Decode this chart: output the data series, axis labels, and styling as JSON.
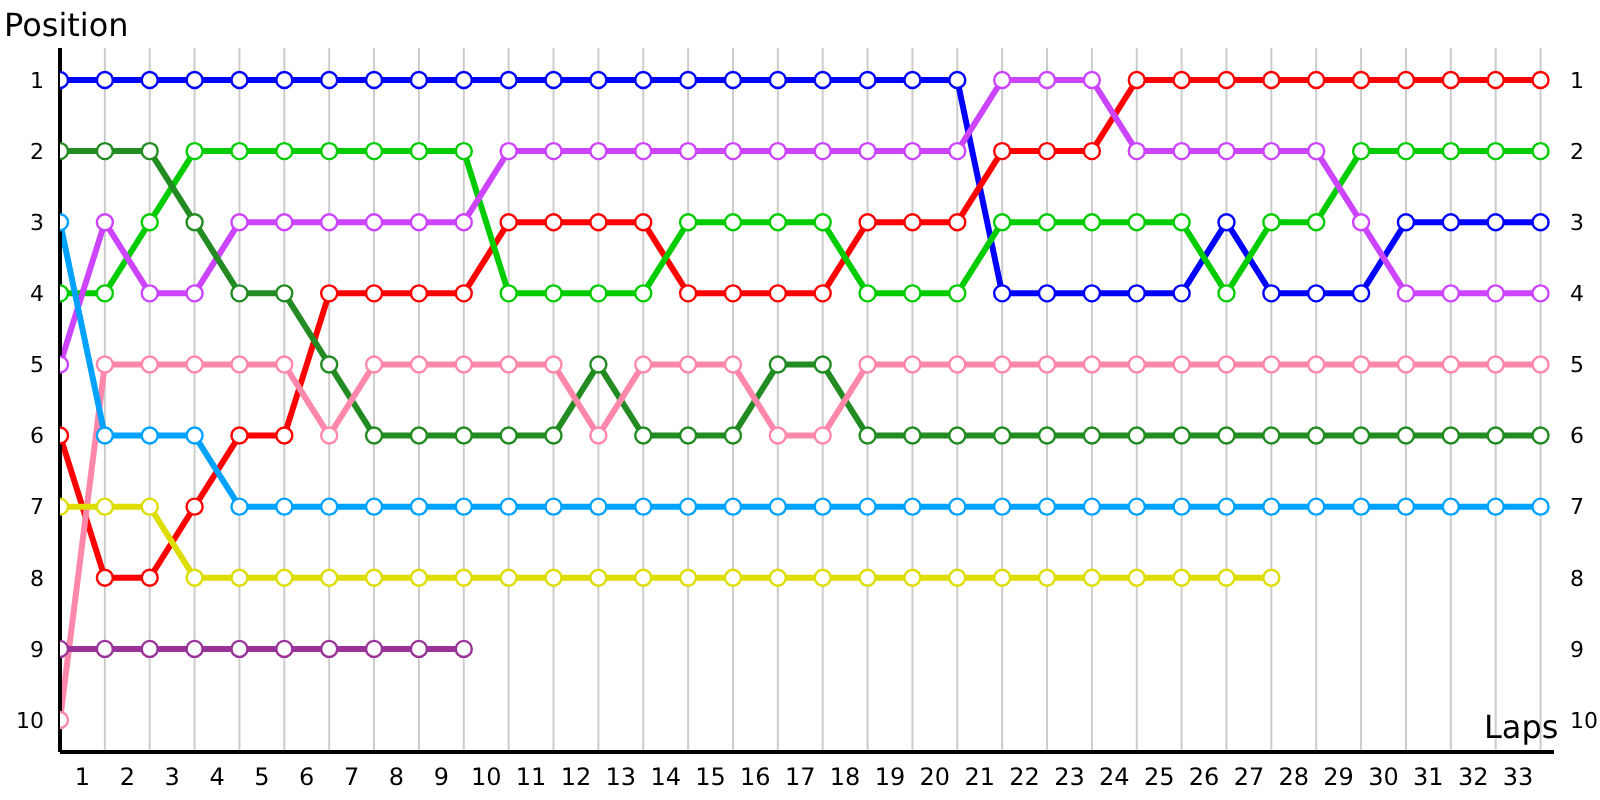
{
  "chart_data": {
    "type": "line",
    "xlabel": "Laps",
    "ylabel": "Position",
    "x": [
      0,
      1,
      2,
      3,
      4,
      5,
      6,
      7,
      8,
      9,
      10,
      11,
      12,
      13,
      14,
      15,
      16,
      17,
      18,
      19,
      20,
      21,
      22,
      23,
      24,
      25,
      26,
      27,
      28,
      29,
      30,
      31,
      32,
      33
    ],
    "xlim": [
      0,
      33.3
    ],
    "xticks": [
      {
        "value": 0,
        "label": null
      },
      {
        "value": 0.5,
        "label": "1"
      },
      {
        "value": 1,
        "label": null
      },
      {
        "value": 1.5,
        "label": "2"
      },
      {
        "value": 2,
        "label": null
      },
      {
        "value": 2.5,
        "label": "3"
      },
      {
        "value": 3,
        "label": null
      },
      {
        "value": 3.5,
        "label": "4"
      },
      {
        "value": 4,
        "label": null
      },
      {
        "value": 4.5,
        "label": "5"
      },
      {
        "value": 5,
        "label": null
      },
      {
        "value": 5.5,
        "label": "6"
      },
      {
        "value": 6,
        "label": null
      },
      {
        "value": 6.5,
        "label": "7"
      },
      {
        "value": 7,
        "label": null
      },
      {
        "value": 7.5,
        "label": "8"
      },
      {
        "value": 8,
        "label": null
      },
      {
        "value": 8.5,
        "label": "9"
      },
      {
        "value": 9,
        "label": null
      },
      {
        "value": 9.5,
        "label": "10"
      },
      {
        "value": 10,
        "label": null
      },
      {
        "value": 10.5,
        "label": "11"
      },
      {
        "value": 11,
        "label": null
      },
      {
        "value": 11.5,
        "label": "12"
      },
      {
        "value": 12,
        "label": null
      },
      {
        "value": 12.5,
        "label": "13"
      },
      {
        "value": 13,
        "label": null
      },
      {
        "value": 13.5,
        "label": "14"
      },
      {
        "value": 14,
        "label": null
      },
      {
        "value": 14.5,
        "label": "15"
      },
      {
        "value": 15,
        "label": null
      },
      {
        "value": 15.5,
        "label": "16"
      },
      {
        "value": 16,
        "label": null
      },
      {
        "value": 16.5,
        "label": "17"
      },
      {
        "value": 17,
        "label": null
      },
      {
        "value": 17.5,
        "label": "18"
      },
      {
        "value": 18,
        "label": null
      },
      {
        "value": 18.5,
        "label": "19"
      },
      {
        "value": 19,
        "label": null
      },
      {
        "value": 19.5,
        "label": "20"
      },
      {
        "value": 20,
        "label": null
      },
      {
        "value": 20.5,
        "label": "21"
      },
      {
        "value": 21,
        "label": null
      },
      {
        "value": 21.5,
        "label": "22"
      },
      {
        "value": 22,
        "label": null
      },
      {
        "value": 22.5,
        "label": "23"
      },
      {
        "value": 23,
        "label": null
      },
      {
        "value": 23.5,
        "label": "24"
      },
      {
        "value": 24,
        "label": null
      },
      {
        "value": 24.5,
        "label": "25"
      },
      {
        "value": 25,
        "label": null
      },
      {
        "value": 25.5,
        "label": "26"
      },
      {
        "value": 26,
        "label": null
      },
      {
        "value": 26.5,
        "label": "27"
      },
      {
        "value": 27,
        "label": null
      },
      {
        "value": 27.5,
        "label": "28"
      },
      {
        "value": 28,
        "label": null
      },
      {
        "value": 28.5,
        "label": "29"
      },
      {
        "value": 29,
        "label": null
      },
      {
        "value": 29.5,
        "label": "30"
      },
      {
        "value": 30,
        "label": null
      },
      {
        "value": 30.5,
        "label": "31"
      },
      {
        "value": 31,
        "label": null
      },
      {
        "value": 31.5,
        "label": "32"
      },
      {
        "value": 32,
        "label": null
      },
      {
        "value": 32.5,
        "label": "33"
      },
      {
        "value": 33,
        "label": null
      }
    ],
    "ylim": [
      10.45,
      0.55
    ],
    "yticks": [
      1,
      2,
      3,
      4,
      5,
      6,
      7,
      8,
      9,
      10
    ],
    "y2lim": [
      10.45,
      0.55
    ],
    "y2ticks": [
      1,
      2,
      3,
      4,
      5,
      6,
      7,
      8,
      9,
      10
    ],
    "grid": true,
    "legend": false,
    "marker": "circle",
    "line_style": "solid",
    "series": [
      {
        "color": "#0000ff",
        "values": [
          1,
          1,
          1,
          1,
          1,
          1,
          1,
          1,
          1,
          1,
          1,
          1,
          1,
          1,
          1,
          1,
          1,
          1,
          1,
          1,
          1,
          4,
          4,
          4,
          4,
          4,
          3,
          4,
          4,
          4,
          3,
          3,
          3,
          3
        ]
      },
      {
        "color": "#ff0000",
        "values": [
          6,
          8,
          8,
          7,
          6,
          6,
          4,
          4,
          4,
          4,
          3,
          3,
          3,
          3,
          4,
          4,
          4,
          4,
          3,
          3,
          3,
          2,
          2,
          2,
          1,
          1,
          1,
          1,
          1,
          1,
          1,
          1,
          1,
          1
        ]
      },
      {
        "color": "#00cc00",
        "values": [
          4,
          4,
          3,
          2,
          2,
          2,
          2,
          2,
          2,
          2,
          4,
          4,
          4,
          4,
          3,
          3,
          3,
          3,
          4,
          4,
          4,
          3,
          3,
          3,
          3,
          3,
          4,
          3,
          3,
          2,
          2,
          2,
          2,
          2
        ]
      },
      {
        "color": "#cc44ff",
        "values": [
          5,
          3,
          4,
          4,
          3,
          3,
          3,
          3,
          3,
          3,
          2,
          2,
          2,
          2,
          2,
          2,
          2,
          2,
          2,
          2,
          2,
          1,
          1,
          1,
          2,
          2,
          2,
          2,
          2,
          3,
          4,
          4,
          4,
          4
        ]
      },
      {
        "color": "#228b22",
        "values": [
          2,
          2,
          2,
          3,
          4,
          4,
          5,
          6,
          6,
          6,
          6,
          6,
          5,
          6,
          6,
          6,
          5,
          5,
          6,
          6,
          6,
          6,
          6,
          6,
          6,
          6,
          6,
          6,
          6,
          6,
          6,
          6,
          6,
          6
        ]
      },
      {
        "color": "#ff88aa",
        "values": [
          10,
          5,
          5,
          5,
          5,
          5,
          6,
          5,
          5,
          5,
          5,
          5,
          6,
          5,
          5,
          5,
          6,
          6,
          5,
          5,
          5,
          5,
          5,
          5,
          5,
          5,
          5,
          5,
          5,
          5,
          5,
          5,
          5,
          5
        ]
      },
      {
        "color": "#00a2ff",
        "values": [
          3,
          6,
          6,
          6,
          7,
          7,
          7,
          7,
          7,
          7,
          7,
          7,
          7,
          7,
          7,
          7,
          7,
          7,
          7,
          7,
          7,
          7,
          7,
          7,
          7,
          7,
          7,
          7,
          7,
          7,
          7,
          7,
          7,
          7
        ]
      },
      {
        "color": "#dddd00",
        "values": [
          7,
          7,
          7,
          8,
          8,
          8,
          8,
          8,
          8,
          8,
          8,
          8,
          8,
          8,
          8,
          8,
          8,
          8,
          8,
          8,
          8,
          8,
          8,
          8,
          8,
          8,
          8,
          8,
          null,
          null,
          null,
          null,
          null,
          null
        ]
      },
      {
        "color": "#993399",
        "values": [
          9,
          9,
          9,
          9,
          9,
          9,
          9,
          9,
          9,
          9,
          null,
          null,
          null,
          null,
          null,
          null,
          null,
          null,
          null,
          null,
          null,
          null,
          null,
          null,
          null,
          null,
          null,
          null,
          null,
          null,
          null,
          null,
          null,
          null
        ]
      }
    ]
  }
}
